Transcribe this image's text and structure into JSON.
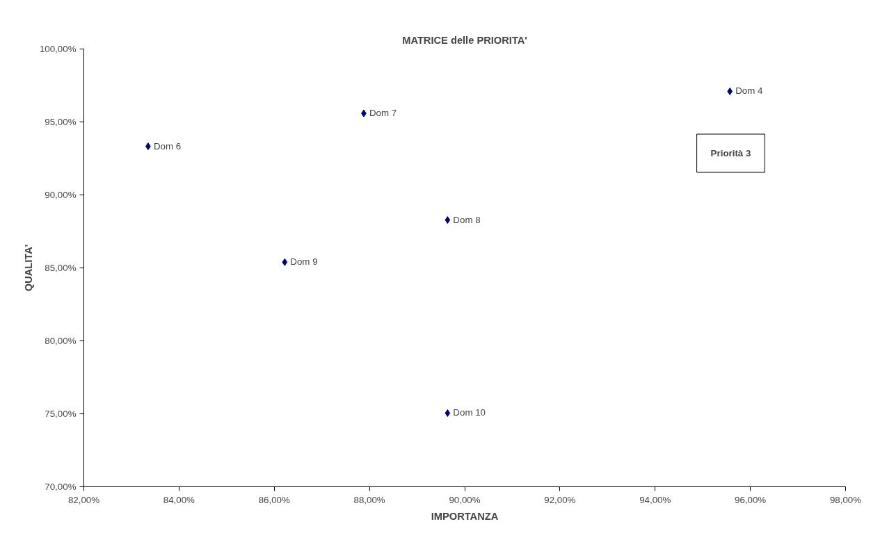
{
  "chart_data": {
    "type": "scatter",
    "title": "MATRICE delle PRIORITA'",
    "xlabel": "IMPORTANZA",
    "ylabel": "QUALITA'",
    "x": [
      95.57,
      87.88,
      83.35,
      89.64,
      86.22,
      89.64
    ],
    "series": [
      {
        "color": "#000080",
        "values": [
          97.1,
          95.59,
          93.33,
          88.28,
          85.39,
          75.05
        ]
      }
    ],
    "marker": "diamond",
    "grid": false,
    "xlim": [
      82,
      98
    ],
    "ylim": [
      70,
      100
    ],
    "xticks": [
      {
        "value": 82,
        "label": "82,00%"
      },
      {
        "value": 84,
        "label": "84,00%"
      },
      {
        "value": 86,
        "label": "86,00%"
      },
      {
        "value": 88,
        "label": "88,00%"
      },
      {
        "value": 90,
        "label": "90,00%"
      },
      {
        "value": 92,
        "label": "92,00%"
      },
      {
        "value": 94,
        "label": "94,00%"
      },
      {
        "value": 96,
        "label": "96,00%"
      },
      {
        "value": 98,
        "label": "98,00%"
      }
    ],
    "yticks": [
      {
        "value": 70,
        "label": "70,00%"
      },
      {
        "value": 75,
        "label": "75,00%"
      },
      {
        "value": 80,
        "label": "80,00%"
      },
      {
        "value": 85,
        "label": "85,00%"
      },
      {
        "value": 90,
        "label": "90,00%"
      },
      {
        "value": 95,
        "label": "95,00%"
      },
      {
        "value": 100,
        "label": "100,00%"
      }
    ],
    "annotations": [
      {
        "text": "Dom 4",
        "x": 95.57,
        "y": 97.1
      },
      {
        "text": "Dom 7",
        "x": 87.88,
        "y": 95.59
      },
      {
        "text": "Dom 6",
        "x": 83.35,
        "y": 93.33
      },
      {
        "text": "Dom 8",
        "x": 89.64,
        "y": 88.28
      },
      {
        "text": "Dom 9",
        "x": 86.22,
        "y": 85.39
      },
      {
        "text": "Dom 10",
        "x": 89.64,
        "y": 75.05
      },
      "Priorità 3"
    ]
  }
}
